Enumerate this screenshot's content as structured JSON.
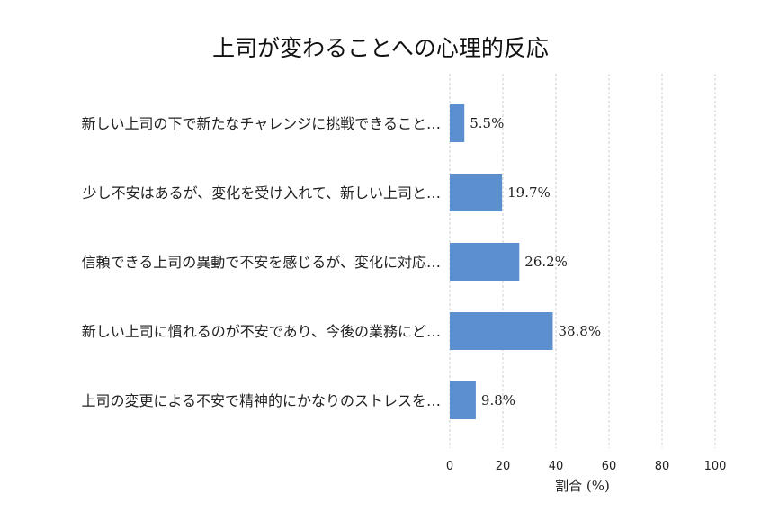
{
  "chart_data": {
    "type": "bar",
    "orientation": "horizontal",
    "title": "上司が変わることへの心理的反応",
    "xlabel": "割合 (%)",
    "ylabel": "",
    "xlim": [
      0,
      100
    ],
    "xticks": [
      0,
      20,
      40,
      60,
      80,
      100
    ],
    "grid": "vertical dashed",
    "bar_color": "#5b8fd0",
    "categories": [
      "新しい上司の下で新たなチャレンジに挑戦できること…",
      "少し不安はあるが、変化を受け入れて、新しい上司と…",
      "信頼できる上司の異動で不安を感じるが、変化に対応…",
      "新しい上司に慣れるのが不安であり、今後の業務にど…",
      "上司の変更による不安で精神的にかなりのストレスを…"
    ],
    "values": [
      5.5,
      19.7,
      26.2,
      38.8,
      9.8
    ],
    "value_labels": [
      "5.5%",
      "19.7%",
      "26.2%",
      "38.8%",
      "9.8%"
    ]
  }
}
